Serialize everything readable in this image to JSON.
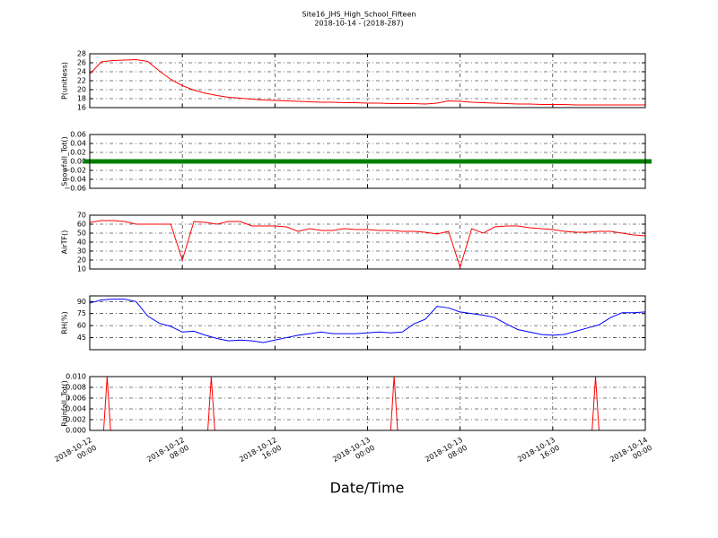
{
  "title": "Site16_JHS_High_School_Fifteen",
  "subtitle": "2018-10-14 - (2018-287)",
  "xlabel": "Date/Time",
  "chart_data": [
    {
      "type": "line",
      "ylabel": "P(unitless)",
      "color": "#ff0000",
      "grid": true,
      "x": [
        0,
        1,
        2,
        3,
        4,
        5,
        6,
        7,
        8,
        9,
        10,
        11,
        12,
        13,
        14,
        15,
        16,
        17,
        18,
        19,
        20,
        21,
        22,
        23,
        24,
        25,
        26,
        27,
        28,
        29,
        30,
        31,
        32,
        33,
        34,
        35,
        36,
        37,
        38,
        39,
        40,
        41,
        42,
        43,
        44,
        45,
        46,
        47,
        48
      ],
      "values": [
        23.5,
        26.2,
        26.5,
        26.6,
        26.7,
        26.3,
        24.2,
        22.3,
        20.9,
        19.9,
        19.2,
        18.7,
        18.3,
        18.1,
        17.9,
        17.7,
        17.6,
        17.5,
        17.4,
        17.3,
        17.2,
        17.2,
        17.1,
        17.1,
        17.0,
        17.0,
        16.9,
        16.9,
        16.9,
        16.8,
        17.0,
        17.5,
        17.4,
        17.2,
        17.1,
        17.0,
        16.9,
        16.8,
        16.8,
        16.7,
        16.7,
        16.7,
        16.6,
        16.6,
        16.6,
        16.6,
        16.6,
        16.6,
        16.6
      ],
      "xlim": [
        0,
        48
      ],
      "xticks": [
        0,
        8,
        16,
        24,
        32,
        40,
        48
      ],
      "ylim": [
        16,
        28
      ],
      "yticks": [
        16,
        18,
        20,
        22,
        24,
        26,
        28
      ]
    },
    {
      "type": "scatter",
      "ylabel": "Snowfall_Tot()",
      "color": "#008000",
      "grid": true,
      "x": [
        0,
        1,
        2,
        3,
        4,
        5,
        6,
        7,
        8,
        9,
        10,
        11,
        12,
        13,
        14,
        15,
        16,
        17,
        18,
        19,
        20,
        21,
        22,
        23,
        24,
        25,
        26,
        27,
        28,
        29,
        30,
        31,
        32,
        33,
        34,
        35,
        36,
        37,
        38,
        39,
        40,
        41,
        42,
        43,
        44,
        45,
        46,
        47,
        48
      ],
      "values": [
        0,
        0,
        0,
        0,
        0,
        0,
        0,
        0,
        0,
        0,
        0,
        0,
        0,
        0,
        0,
        0,
        0,
        0,
        0,
        0,
        0,
        0,
        0,
        0,
        0,
        0,
        0,
        0,
        0,
        0,
        0,
        0,
        0,
        0,
        0,
        0,
        0,
        0,
        0,
        0,
        0,
        0,
        0,
        0,
        0,
        0,
        0,
        0,
        0
      ],
      "xlim": [
        0,
        48
      ],
      "xticks": [
        0,
        8,
        16,
        24,
        32,
        40,
        48
      ],
      "ylim": [
        -0.06,
        0.06
      ],
      "yticks": [
        {
          "value": -0.06,
          "label": "−0.06"
        },
        {
          "value": -0.04,
          "label": "−0.04"
        },
        {
          "value": -0.02,
          "label": "−0.02"
        },
        {
          "value": 0,
          "label": "0.00"
        },
        {
          "value": 0.02,
          "label": "0.02"
        },
        {
          "value": 0.04,
          "label": "0.04"
        },
        {
          "value": 0.06,
          "label": "0.06"
        }
      ]
    },
    {
      "type": "line",
      "ylabel": "AirTF()",
      "color": "#ff0000",
      "grid": true,
      "x": [
        0,
        1,
        2,
        3,
        4,
        5,
        6,
        7,
        8,
        9,
        10,
        11,
        12,
        13,
        14,
        15,
        16,
        17,
        18,
        19,
        20,
        21,
        22,
        23,
        24,
        25,
        26,
        27,
        28,
        29,
        30,
        31,
        32,
        33,
        34,
        35,
        36,
        37,
        38,
        39,
        40,
        41,
        42,
        43,
        44,
        45,
        46,
        47,
        48
      ],
      "values": [
        62,
        64,
        64,
        63,
        60,
        60,
        60,
        60,
        20,
        63,
        62,
        60,
        63,
        63,
        58,
        58,
        58,
        57,
        52,
        55,
        53,
        53,
        55,
        54,
        54,
        53,
        53,
        52,
        52,
        51,
        49,
        52,
        12,
        55,
        50,
        57,
        58,
        58,
        56,
        55,
        54,
        52,
        51,
        51,
        52,
        52,
        50,
        48,
        47
      ],
      "xlim": [
        0,
        48
      ],
      "xticks": [
        0,
        8,
        16,
        24,
        32,
        40,
        48
      ],
      "ylim": [
        10,
        70
      ],
      "yticks": [
        10,
        20,
        30,
        40,
        50,
        60,
        70
      ]
    },
    {
      "type": "line",
      "ylabel": "RH(%)",
      "color": "#0000ff",
      "grid": true,
      "x": [
        0,
        1,
        2,
        3,
        4,
        5,
        6,
        7,
        8,
        9,
        10,
        11,
        12,
        13,
        14,
        15,
        16,
        17,
        18,
        19,
        20,
        21,
        22,
        23,
        24,
        25,
        26,
        27,
        28,
        29,
        30,
        31,
        32,
        33,
        34,
        35,
        36,
        37,
        38,
        39,
        40,
        41,
        42,
        43,
        44,
        45,
        46,
        47,
        48
      ],
      "values": [
        88,
        92,
        93,
        93,
        90,
        72,
        63,
        59,
        52,
        53,
        48,
        44,
        41,
        42,
        41,
        39,
        42,
        45,
        48,
        50,
        52,
        50,
        50,
        50,
        51,
        52,
        51,
        52,
        62,
        68,
        84,
        82,
        77,
        75,
        73,
        70,
        62,
        55,
        52,
        49,
        48,
        49,
        53,
        57,
        61,
        70,
        76,
        76,
        77
      ],
      "xlim": [
        0,
        48
      ],
      "xticks": [
        0,
        8,
        16,
        24,
        32,
        40,
        48
      ],
      "ylim": [
        30,
        97
      ],
      "yticks": [
        45,
        60,
        75,
        90
      ]
    },
    {
      "type": "line",
      "ylabel": "Rainfall_Tot()",
      "color": "#ff0000",
      "grid": true,
      "x": [
        0,
        1.2,
        1.5,
        1.8,
        10.2,
        10.5,
        10.8,
        26,
        26.3,
        26.6,
        43.4,
        43.7,
        44,
        48
      ],
      "values": [
        0,
        0,
        0.01,
        0,
        0,
        0.01,
        0,
        0,
        0.01,
        0,
        0,
        0.01,
        0,
        0
      ],
      "xlim": [
        0,
        48
      ],
      "xticks": [
        {
          "value": 0,
          "label": "2018-10-12\n00:00"
        },
        {
          "value": 8,
          "label": "2018-10-12\n08:00"
        },
        {
          "value": 16,
          "label": "2018-10-12\n16:00"
        },
        {
          "value": 24,
          "label": "2018-10-13\n00:00"
        },
        {
          "value": 32,
          "label": "2018-10-13\n08:00"
        },
        {
          "value": 40,
          "label": "2018-10-13\n16:00"
        },
        {
          "value": 48,
          "label": "2018-10-14\n00:00"
        }
      ],
      "ylim": [
        0,
        0.01
      ],
      "yticks": [
        {
          "value": 0,
          "label": "0.000"
        },
        {
          "value": 0.002,
          "label": "0.002"
        },
        {
          "value": 0.004,
          "label": "0.004"
        },
        {
          "value": 0.006,
          "label": "0.006"
        },
        {
          "value": 0.008,
          "label": "0.008"
        },
        {
          "value": 0.01,
          "label": "0.010"
        }
      ]
    }
  ]
}
